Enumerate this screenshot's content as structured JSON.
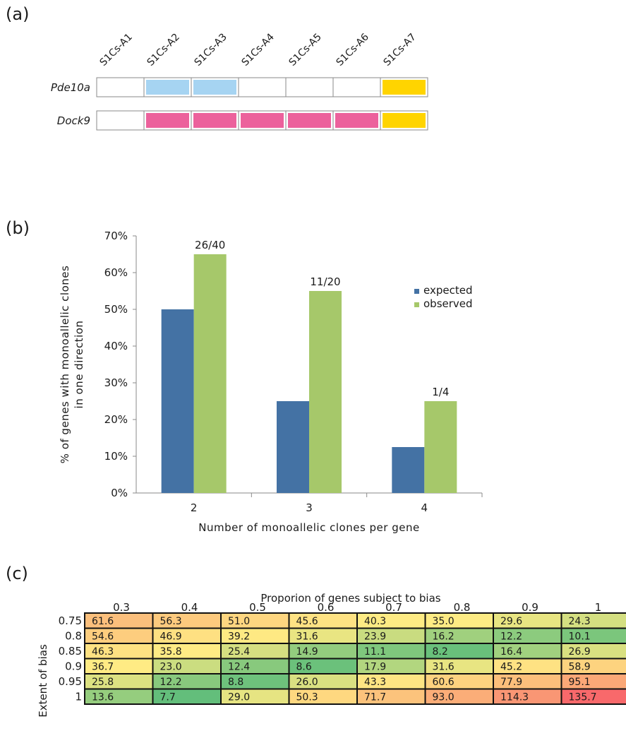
{
  "panels": {
    "a": "(a)",
    "b": "(b)",
    "c": "(c)"
  },
  "chart_data": [
    {
      "type": "table",
      "panel": "(a)",
      "columns": [
        "S1Cs-A1",
        "S1Cs-A2",
        "S1Cs-A3",
        "S1Cs-A4",
        "S1Cs-A5",
        "S1Cs-A6",
        "S1Cs-A7"
      ],
      "rows": [
        {
          "gene": "Pde10a",
          "cells": [
            "#ffffff",
            "#a6d4f2",
            "#a6d4f2",
            "#ffffff",
            "#ffffff",
            "#ffffff",
            "#ffd400"
          ]
        },
        {
          "gene": "Dock9",
          "cells": [
            "#ffffff",
            "#ec619c",
            "#ec619c",
            "#ec619c",
            "#ec619c",
            "#ec619c",
            "#ffd400"
          ]
        }
      ]
    },
    {
      "type": "bar",
      "panel": "(b)",
      "categories": [
        "2",
        "3",
        "4"
      ],
      "series": [
        {
          "name": "expected",
          "color": "#4472a4",
          "values": [
            50,
            25,
            12.5
          ]
        },
        {
          "name": "observed",
          "color": "#a6c86a",
          "values": [
            65,
            55,
            25
          ]
        }
      ],
      "bar_labels": [
        "26/40",
        "11/20",
        "1/4"
      ],
      "ylim": [
        0,
        70
      ],
      "yticks": [
        "0%",
        "10%",
        "20%",
        "30%",
        "40%",
        "50%",
        "60%",
        "70%"
      ],
      "xlabel": "Number of monoallelic clones per gene",
      "ylabel_lines": [
        "% of genes with monoallelic clones",
        "in one direction"
      ],
      "legend_position": "right",
      "grid": false
    },
    {
      "type": "heatmap",
      "panel": "(c)",
      "title": "Proporion of genes subject to bias",
      "ylabel": "Extent of bias",
      "columns": [
        "0.3",
        "0.4",
        "0.5",
        "0.6",
        "0.7",
        "0.8",
        "0.9",
        "1"
      ],
      "rows": [
        "0.75",
        "0.8",
        "0.85",
        "0.9",
        "0.95",
        "1"
      ],
      "values": [
        [
          "61.6",
          "56.3",
          "51.0",
          "45.6",
          "40.3",
          "35.0",
          "29.6",
          "24.3"
        ],
        [
          "54.6",
          "46.9",
          "39.2",
          "31.6",
          "23.9",
          "16.2",
          "12.2",
          "10.1"
        ],
        [
          "46.3",
          "35.8",
          "25.4",
          "14.9",
          "11.1",
          "8.2",
          "16.4",
          "26.9"
        ],
        [
          "36.7",
          "23.0",
          "12.4",
          "8.6",
          "17.9",
          "31.6",
          "45.2",
          "58.9"
        ],
        [
          "25.8",
          "12.2",
          "8.8",
          "26.0",
          "43.3",
          "60.6",
          "77.9",
          "95.1"
        ],
        [
          "13.6",
          "7.7",
          "29.0",
          "50.3",
          "71.7",
          "93.0",
          "114.3",
          "135.7"
        ]
      ],
      "colors": [
        [
          "#fbbf7c",
          "#fdca7e",
          "#fed680",
          "#fee283",
          "#feeb84",
          "#fdeb84",
          "#e8e582",
          "#d4df81"
        ],
        [
          "#fdcd7e",
          "#fee082",
          "#fee983",
          "#e9e582",
          "#c9dc80",
          "#a0d07e",
          "#8ccb7e",
          "#7bc67c"
        ],
        [
          "#fee182",
          "#ffeb84",
          "#d5df81",
          "#93cc7e",
          "#7fc77d",
          "#69c07b",
          "#a1d17f",
          "#d9e081"
        ],
        [
          "#ffeb84",
          "#cbdd80",
          "#88c97d",
          "#6bc17b",
          "#b2d67f",
          "#e8e582",
          "#fee283",
          "#fdd37f"
        ],
        [
          "#dce181",
          "#88c97d",
          "#6ec27c",
          "#d9e081",
          "#fee583",
          "#fdd27f",
          "#fcbf7b",
          "#fba877"
        ],
        [
          "#95cd7e",
          "#63be7b",
          "#e6e482",
          "#fed880",
          "#fcc37c",
          "#fbad78",
          "#f99674",
          "#f8696b"
        ]
      ]
    }
  ]
}
